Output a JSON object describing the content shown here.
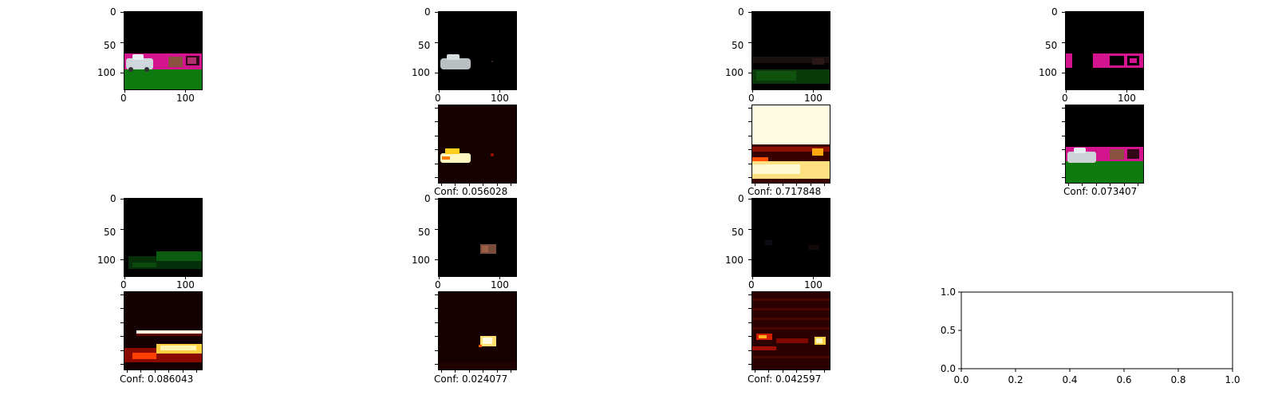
{
  "figure": {
    "tick_labels": {
      "y0": "0",
      "y50": "50",
      "y100": "100",
      "x0": "0",
      "x100": "100"
    },
    "conf_labels": [
      "Conf: 0.056028",
      "Conf: 0.717848",
      "Conf: 0.073407",
      "Conf: 0.086043",
      "Conf: 0.024077",
      "Conf: 0.042597"
    ],
    "colors": {
      "magenta": "#d4148f",
      "green": "#0f7a10",
      "black": "#000000",
      "heat_hot": "#fff3a0",
      "heat_dark": "#1a0000"
    }
  },
  "chart_data": {
    "type": "line",
    "xlim": [
      0.0,
      1.0
    ],
    "ylim": [
      0.0,
      1.0
    ],
    "xticks": [
      "0.0",
      "0.2",
      "0.4",
      "0.6",
      "0.8",
      "1.0"
    ],
    "yticks": [
      "0.0",
      "0.5",
      "1.0"
    ],
    "series": []
  }
}
